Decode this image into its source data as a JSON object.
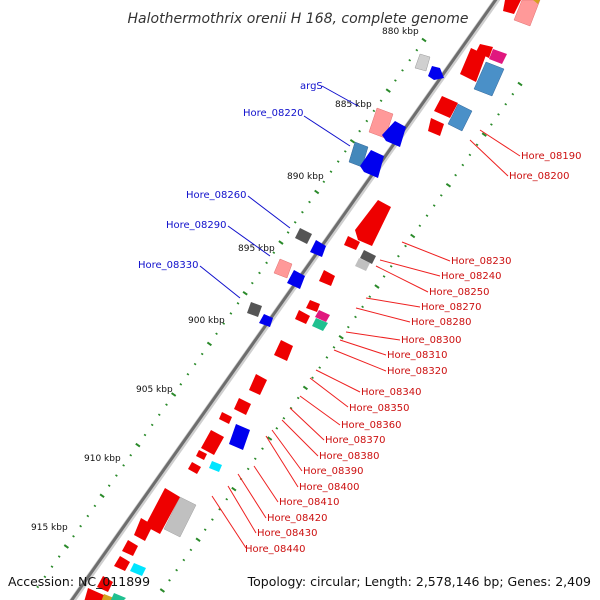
{
  "title": "Halothermothrix orenii H 168, complete genome",
  "footer": {
    "accession": "Accession: NC_011899",
    "summary": "Topology: circular; Length: 2,578,146 bp; Genes: 2,409"
  },
  "colors": {
    "minus_label": "#1010cc",
    "plus_label": "#cc1010",
    "backbone": "#808080",
    "tick": "#2a8a2a"
  },
  "kbp_marks": [
    {
      "label": "880 kbp",
      "kbp": 880
    },
    {
      "label": "885 kbp",
      "kbp": 885
    },
    {
      "label": "890 kbp",
      "kbp": 890
    },
    {
      "label": "895 kbp",
      "kbp": 895
    },
    {
      "label": "900 kbp",
      "kbp": 900
    },
    {
      "label": "905 kbp",
      "kbp": 905
    },
    {
      "label": "910 kbp",
      "kbp": 910
    },
    {
      "label": "915 kbp",
      "kbp": 915
    }
  ],
  "inner_labels": [
    {
      "text": "argS"
    },
    {
      "text": "Hore_08220"
    },
    {
      "text": "Hore_08260"
    },
    {
      "text": "Hore_08290"
    },
    {
      "text": "Hore_08330"
    }
  ],
  "outer_labels": [
    {
      "text": "Hore_08190"
    },
    {
      "text": "Hore_08200"
    },
    {
      "text": "Hore_08230"
    },
    {
      "text": "Hore_08240"
    },
    {
      "text": "Hore_08250"
    },
    {
      "text": "Hore_08270"
    },
    {
      "text": "Hore_08280"
    },
    {
      "text": "Hore_08300"
    },
    {
      "text": "Hore_08310"
    },
    {
      "text": "Hore_08320"
    },
    {
      "text": "Hore_08340"
    },
    {
      "text": "Hore_08350"
    },
    {
      "text": "Hore_08360"
    },
    {
      "text": "Hore_08370"
    },
    {
      "text": "Hore_08380"
    },
    {
      "text": "Hore_08390"
    },
    {
      "text": "Hore_08400"
    },
    {
      "text": "Hore_08410"
    },
    {
      "text": "Hore_08420"
    },
    {
      "text": "Hore_08430"
    },
    {
      "text": "Hore_08440"
    }
  ]
}
